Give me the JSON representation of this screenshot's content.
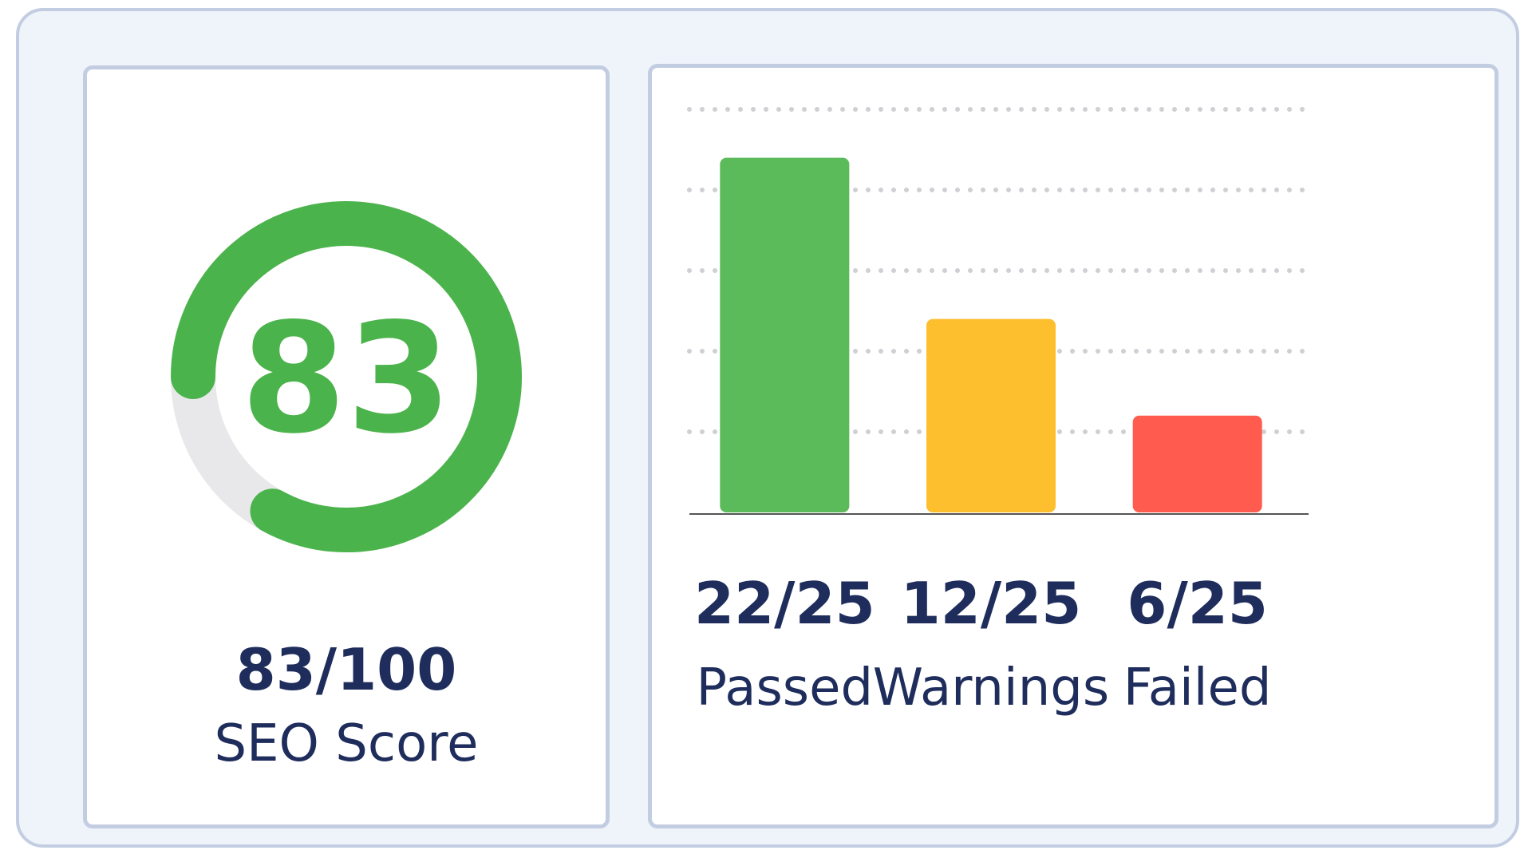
{
  "score": {
    "value": "83",
    "fraction": "83/100",
    "label": "SEO Score",
    "percent": 83,
    "color": "#4bb34b",
    "track_color": "#e8e8ea"
  },
  "chart_data": {
    "type": "bar",
    "categories": [
      "Passed",
      "Warnings",
      "Failed"
    ],
    "values": [
      22,
      12,
      6
    ],
    "value_labels": [
      "22/25",
      "12/25",
      "6/25"
    ],
    "colors": [
      "#5bba59",
      "#fdbf2d",
      "#ff5b4f"
    ],
    "ylim": [
      0,
      25
    ],
    "grid": "dotted-horizontal",
    "title": "",
    "xlabel": "",
    "ylabel": ""
  }
}
